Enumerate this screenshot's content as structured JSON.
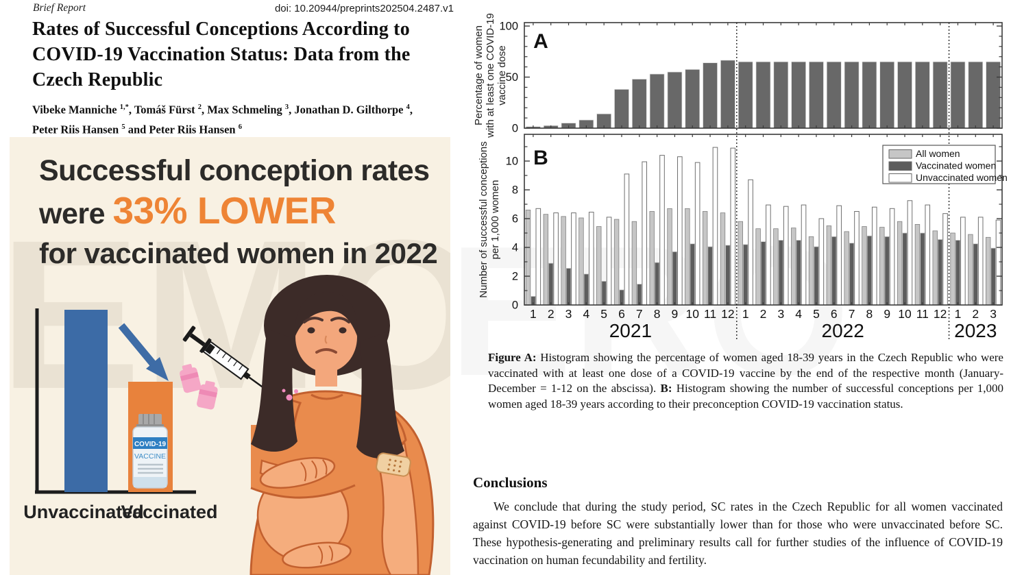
{
  "paper": {
    "kicker": "Brief Report",
    "doi": "doi: 10.20944/preprints202504.2487.v1",
    "title": "Rates of Successful Conceptions According to COVID-19 Vaccination Status: Data from the Czech Republic",
    "author_lines": [
      [
        {
          "name": "Vibeke Manniche",
          "sup": "1,*",
          "sep": ", "
        },
        {
          "name": "Tomáš Fürst",
          "sup": "2",
          "sep": ", "
        },
        {
          "name": "Max Schmeling",
          "sup": "3",
          "sep": ", "
        },
        {
          "name": "Jonathan D. Gilthorpe",
          "sup": "4",
          "sep": ","
        }
      ],
      [
        {
          "name": "Peter Riis Hansen",
          "sup": "5",
          "sep": " and "
        },
        {
          "name": "Peter Riis Hansen",
          "sup": "6",
          "sep": ""
        }
      ]
    ]
  },
  "infographic": {
    "headline_line1": "Successful conception rates",
    "headline_line2_prefix": "were ",
    "headline_line2_highlight": "33% LOWER",
    "headline_line3": "for vaccinated women in 2022",
    "bar_label_left": "Unvaccinated",
    "bar_label_right": "Vaccinated",
    "vial_line1": "COVID-19",
    "vial_line2": "VACCINE",
    "colors": {
      "background": "#f8f1e3",
      "accent_orange": "#ee8435",
      "headline_text": "#2c2b29",
      "bar_blue": "#3c6ba6",
      "bar_orange": "#e8823c"
    }
  },
  "watermark": {
    "left": "EMO V",
    "right": "ERO"
  },
  "chart_data": [
    {
      "type": "bar",
      "panel_label": "A",
      "ylabel_lines": [
        "Percentage of women",
        "with at least one COVID-19",
        "vaccine dose"
      ],
      "ylim": [
        0,
        100
      ],
      "yticks": [
        0,
        50,
        100
      ],
      "bar_color": "#686868",
      "years": [
        {
          "label": "2021",
          "months": 12
        },
        {
          "label": "2022",
          "months": 12
        },
        {
          "label": "2023",
          "months": 3
        }
      ],
      "values": [
        1.5,
        2.5,
        5,
        8,
        14,
        38,
        48,
        53,
        55,
        57.5,
        64,
        66.5,
        65,
        65,
        65,
        65,
        65,
        65,
        65,
        65,
        65,
        65,
        65,
        65,
        65,
        65,
        65
      ]
    },
    {
      "type": "bar",
      "panel_label": "B",
      "ylabel_lines": [
        "Number of successful conceptions",
        "per 1,000 women"
      ],
      "ylim": [
        0,
        11.2
      ],
      "yticks": [
        0,
        2,
        4,
        6,
        8,
        10
      ],
      "separators_after": [
        12,
        24
      ],
      "legend_position": "top-right",
      "series": [
        {
          "name": "All women",
          "color": "#c6c6c6",
          "stroke": "#808080",
          "values": [
            6.6,
            6.3,
            6.15,
            6.05,
            5.45,
            5.95,
            5.8,
            6.5,
            6.7,
            6.7,
            6.5,
            6.4,
            5.8,
            5.3,
            5.3,
            5.35,
            4.75,
            5.5,
            5.1,
            5.45,
            5.4,
            5.8,
            5.6,
            5.15,
            5.0,
            4.9,
            4.7
          ]
        },
        {
          "name": "Vaccinated women",
          "color": "#5d5d5d",
          "stroke": "#c8c8c8",
          "values": [
            0.6,
            2.9,
            2.55,
            2.15,
            1.65,
            1.05,
            1.45,
            2.95,
            3.7,
            4.25,
            4.05,
            4.15,
            4.2,
            4.4,
            4.5,
            4.5,
            4.05,
            4.75,
            4.3,
            4.8,
            4.75,
            5.0,
            5.0,
            4.55,
            4.5,
            4.25,
            3.95
          ]
        },
        {
          "name": "Unvaccinated women",
          "color": "#ffffff",
          "stroke": "#6e6e6e",
          "values": [
            6.7,
            6.4,
            6.4,
            6.45,
            6.1,
            9.1,
            9.95,
            10.4,
            10.3,
            9.9,
            10.95,
            10.9,
            8.7,
            6.95,
            6.85,
            6.95,
            6.0,
            6.9,
            6.5,
            6.8,
            6.7,
            7.25,
            6.95,
            6.35,
            6.1,
            6.1,
            5.9
          ]
        }
      ]
    }
  ],
  "figure_caption": {
    "label_a": "Figure A:",
    "text_a": " Histogram showing the percentage of women aged 18-39 years in the Czech Republic who were vaccinated with at least one dose of a COVID-19 vaccine by the end of the respective month (January-December = 1-12 on the abscissa). ",
    "label_b": "B:",
    "text_b": " Histogram showing the number of successful conceptions per 1,000 women aged 18-39 years according to their preconception COVID-19 vaccination status."
  },
  "conclusions": {
    "heading": "Conclusions",
    "body": "We conclude that during the study period, SC rates in the Czech Republic for all women vaccinated against COVID-19 before SC were substantially lower than for those who were unvaccinated before SC. These hypothesis-generating and preliminary results call for further studies of the influence of COVID-19 vaccination on human fecundability and fertility."
  }
}
